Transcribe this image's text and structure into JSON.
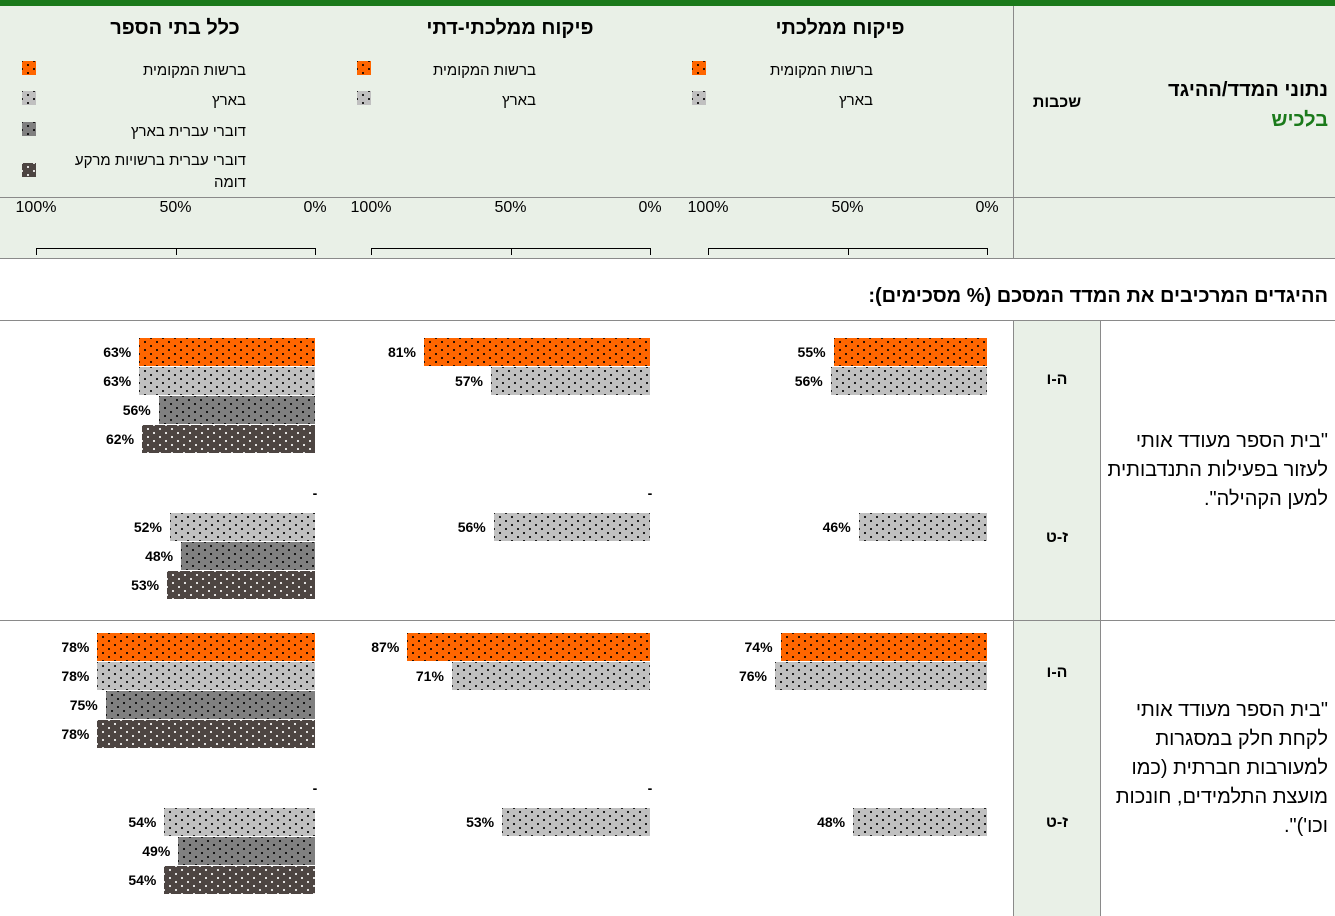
{
  "header": {
    "title": "נתוני המדד/ההיגד",
    "subtitle": "בלכיש",
    "grades_header": "שכבות"
  },
  "chart_data": {
    "type": "bar",
    "orientation": "horizontal-rtl",
    "xlim": [
      0,
      100
    ],
    "xticks": [
      {
        "value": 100,
        "label": "100%"
      },
      {
        "value": 50,
        "label": "50%"
      },
      {
        "value": 0,
        "label": "0%"
      }
    ],
    "panels": [
      {
        "title": "פיקוח ממלכתי",
        "series": [
          {
            "name": "ברשות המקומית",
            "color": "#ff6600"
          },
          {
            "name": "בארץ",
            "color": "#c0c0c0"
          }
        ]
      },
      {
        "title": "פיקוח ממלכתי-דתי",
        "series": [
          {
            "name": "ברשות המקומית",
            "color": "#ff6600"
          },
          {
            "name": "בארץ",
            "color": "#c0c0c0"
          }
        ]
      },
      {
        "title": "כלל בתי הספר",
        "series": [
          {
            "name": "ברשות המקומית",
            "color": "#ff6600"
          },
          {
            "name": "בארץ",
            "color": "#c0c0c0"
          },
          {
            "name": "דוברי עברית בארץ",
            "color": "#808080"
          },
          {
            "name": "דוברי עברית ברשויות מרקע דומה",
            "color": "#4d4542"
          }
        ]
      }
    ],
    "section_title": "ההיגדים המרכיבים את המדד המסכם (% מסכימים):",
    "rows": [
      {
        "statement": "\"בית הספר מעודד אותי לעזור בפעילות התנדבותית למען הקהילה\".",
        "groups": [
          {
            "grade": "ה-ו",
            "panels": [
              {
                "values": [
                  55,
                  56
                ],
                "value_labels": [
                  "55%",
                  "56%"
                ]
              },
              {
                "values": [
                  81,
                  57
                ],
                "value_labels": [
                  "81%",
                  "57%"
                ]
              },
              {
                "values": [
                  63,
                  63,
                  56,
                  62
                ],
                "value_labels": [
                  "63%",
                  "63%",
                  "56%",
                  "62%"
                ]
              }
            ]
          },
          {
            "grade": "ז-ט",
            "panels": [
              {
                "values": [
                  null,
                  46
                ],
                "value_labels": [
                  null,
                  "46%"
                ]
              },
              {
                "values": [
                  null,
                  56
                ],
                "value_labels": [
                  "-",
                  "56%"
                ]
              },
              {
                "values": [
                  null,
                  52,
                  48,
                  53
                ],
                "value_labels": [
                  "-",
                  "52%",
                  "48%",
                  "53%"
                ]
              }
            ]
          }
        ]
      },
      {
        "statement": "\"בית הספר מעודד אותי לקחת חלק במסגרות למעורבות חברתית (כמו מועצת התלמידים, חונכות וכו')\".",
        "groups": [
          {
            "grade": "ה-ו",
            "panels": [
              {
                "values": [
                  74,
                  76
                ],
                "value_labels": [
                  "74%",
                  "76%"
                ]
              },
              {
                "values": [
                  87,
                  71
                ],
                "value_labels": [
                  "87%",
                  "71%"
                ]
              },
              {
                "values": [
                  78,
                  78,
                  75,
                  78
                ],
                "value_labels": [
                  "78%",
                  "78%",
                  "75%",
                  "78%"
                ]
              }
            ]
          },
          {
            "grade": "ז-ט",
            "panels": [
              {
                "values": [
                  null,
                  48
                ],
                "value_labels": [
                  null,
                  "48%"
                ]
              },
              {
                "values": [
                  null,
                  53
                ],
                "value_labels": [
                  "-",
                  "53%"
                ]
              },
              {
                "values": [
                  null,
                  54,
                  49,
                  54
                ],
                "value_labels": [
                  "-",
                  "54%",
                  "49%",
                  "54%"
                ]
              }
            ]
          }
        ]
      }
    ]
  }
}
